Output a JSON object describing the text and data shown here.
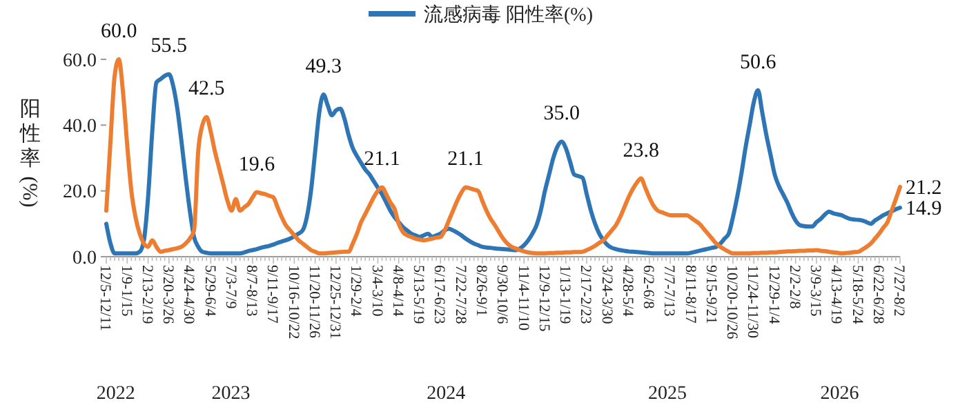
{
  "chart_data": {
    "type": "line",
    "ylabel": "阳性率(%)",
    "categories": [
      "12/5-12/11",
      null,
      null,
      null,
      null,
      "1/9-1/15",
      null,
      null,
      null,
      null,
      "2/13-2/19",
      null,
      null,
      null,
      null,
      "3/20-3/26",
      null,
      null,
      null,
      null,
      "4/24-4/30",
      null,
      null,
      null,
      null,
      "5/29-6/4",
      null,
      null,
      null,
      null,
      "7/3-7/9",
      null,
      null,
      null,
      null,
      "8/7-8/13",
      null,
      null,
      null,
      null,
      "9/11-9/17",
      null,
      null,
      null,
      null,
      "10/16-10/22",
      null,
      null,
      null,
      null,
      "11/20-11/26",
      null,
      null,
      null,
      null,
      "12/25-12/31",
      null,
      null,
      null,
      null,
      "1/29-2/4",
      null,
      null,
      null,
      null,
      "3/4-3/10",
      null,
      null,
      null,
      null,
      "4/8-4/14",
      null,
      null,
      null,
      null,
      "5/13-5/19",
      null,
      null,
      null,
      null,
      "6/17-6/23",
      null,
      null,
      null,
      null,
      "7/22-7/28",
      null,
      null,
      null,
      null,
      "8/26-9/1",
      null,
      null,
      null,
      null,
      "9/30-10/6",
      null,
      null,
      null,
      null,
      "11/4-11/10",
      null,
      null,
      null,
      null,
      "12/9-12/15",
      null,
      null,
      null,
      null,
      "1/13-1/19",
      null,
      null,
      null,
      null,
      "2/17-2/23",
      null,
      null,
      null,
      null,
      "3/24-3/30",
      null,
      null,
      null,
      null,
      "4/28-5/4",
      null,
      null,
      null,
      null,
      "6/2-6/8",
      null,
      null,
      null,
      null,
      "7/7-7/13",
      null,
      null,
      null,
      null,
      "8/11-8/17",
      null,
      null,
      null,
      null,
      "9/15-9/21",
      null,
      null,
      null,
      null,
      "10/20-10/26",
      null,
      null,
      null,
      null,
      "11/24-11/30",
      null,
      null,
      null,
      null,
      "12/29-1/4",
      null,
      null,
      null,
      null,
      "2/2-2/8",
      null,
      null,
      null,
      null,
      "3/9-3/15",
      null,
      null,
      null,
      null,
      "4/13-4/19",
      null,
      null,
      null,
      null,
      "5/18-5/24",
      null,
      null,
      null,
      null,
      "6/22-6/28",
      null,
      null,
      null,
      null,
      "7/27-8/2"
    ],
    "ylim": [
      0,
      60
    ],
    "yticks": [
      {
        "value": 0,
        "label": "0.0"
      },
      {
        "value": 20,
        "label": "20.0"
      },
      {
        "value": 40,
        "label": "40.0"
      },
      {
        "value": 60,
        "label": "60.0"
      }
    ],
    "legend": "top",
    "series": [
      {
        "name": "流感病毒 阳性率(%)",
        "color": "#2e75b6",
        "values": [
          10,
          4,
          1,
          1,
          1,
          1,
          1,
          1,
          1.5,
          5,
          18,
          38,
          53,
          54,
          55,
          55.5,
          52,
          45,
          35,
          24,
          14,
          6,
          3,
          1.5,
          1.2,
          1,
          1,
          1,
          1,
          1,
          1,
          1,
          1,
          1.3,
          1.7,
          2,
          2.3,
          2.7,
          3,
          3.3,
          3.7,
          4.2,
          4.6,
          5,
          5.5,
          6.2,
          7,
          8,
          12,
          20,
          32,
          44,
          49.3,
          46,
          43,
          44.5,
          45,
          42,
          37,
          33,
          30.6,
          28.5,
          26.5,
          25,
          23,
          21,
          19,
          16.5,
          14,
          12,
          10.5,
          9,
          8,
          7,
          6.5,
          6,
          6.5,
          7,
          6,
          6.5,
          7,
          8,
          8.5,
          8,
          7.3,
          6.5,
          5.5,
          4.7,
          4,
          3.5,
          3,
          2.8,
          2.7,
          2.5,
          2.4,
          2.3,
          2.2,
          2.1,
          2,
          2.5,
          3.5,
          5,
          7,
          9.6,
          14,
          20,
          25,
          30,
          33.5,
          35.0,
          33,
          29,
          25,
          24.5,
          24,
          19,
          14,
          10,
          7,
          5,
          3.5,
          2.7,
          2.3,
          2,
          1.8,
          1.6,
          1.5,
          1.4,
          1.3,
          1.2,
          1.1,
          1,
          1,
          1,
          1,
          1,
          1,
          1,
          1,
          1,
          1.2,
          1.5,
          1.8,
          2.1,
          2.4,
          2.7,
          3,
          4,
          5.5,
          7,
          12,
          18,
          25,
          33,
          40,
          47,
          50.6,
          44,
          37,
          31,
          25,
          21.5,
          19,
          16.5,
          13.5,
          11,
          9.6,
          9.3,
          9.2,
          9.2,
          10.5,
          11.5,
          12.8,
          13.7,
          13.2,
          12.9,
          12.6,
          12,
          11.5,
          11.3,
          11.2,
          11,
          10.5,
          10,
          11,
          11.8,
          12.6,
          13.2,
          13.8,
          14.4,
          14.9
        ],
        "value_labels": [
          null,
          null,
          null,
          null,
          null,
          null,
          null,
          null,
          null,
          null,
          null,
          null,
          null,
          null,
          null,
          "55.5",
          null,
          null,
          null,
          null,
          null,
          null,
          null,
          null,
          null,
          null,
          null,
          null,
          null,
          null,
          null,
          null,
          null,
          null,
          null,
          null,
          null,
          null,
          null,
          null,
          null,
          null,
          null,
          null,
          null,
          null,
          null,
          null,
          null,
          null,
          null,
          null,
          "49.3",
          null,
          null,
          null,
          null,
          null,
          null,
          null,
          null,
          null,
          null,
          null,
          null,
          null,
          null,
          null,
          null,
          null,
          null,
          null,
          null,
          null,
          null,
          null,
          null,
          null,
          null,
          null,
          null,
          null,
          null,
          null,
          null,
          null,
          null,
          null,
          null,
          null,
          null,
          null,
          null,
          null,
          null,
          null,
          null,
          null,
          null,
          null,
          null,
          null,
          null,
          null,
          null,
          null,
          null,
          null,
          null,
          "35.0",
          null,
          null,
          null,
          null,
          null,
          null,
          null,
          null,
          null,
          null,
          null,
          null,
          null,
          null,
          null,
          null,
          null,
          null,
          null,
          null,
          null,
          null,
          null,
          null,
          null,
          null,
          null,
          null,
          null,
          null,
          null,
          null,
          null,
          null,
          null,
          null,
          null,
          null,
          null,
          null,
          null,
          null,
          null,
          null,
          null,
          null,
          "50.6",
          null,
          null,
          null,
          null,
          null,
          null,
          null,
          null,
          null,
          null,
          null,
          null,
          null,
          null,
          null,
          null,
          null,
          null,
          null,
          null,
          null,
          null,
          null,
          null,
          null,
          null,
          null,
          null,
          null,
          null,
          null,
          null,
          null,
          "14.9"
        ]
      },
      {
        "color": "#ed7d31",
        "values": [
          14,
          35,
          55,
          60.0,
          50,
          34,
          20,
          12,
          7,
          4,
          3,
          5,
          3,
          1.5,
          1.8,
          2,
          2.3,
          2.6,
          3,
          4,
          5.5,
          8,
          32,
          40,
          42.5,
          38,
          32,
          27,
          22,
          17,
          14,
          17.5,
          14,
          15,
          16,
          18,
          19.6,
          19.3,
          19,
          18.5,
          18,
          15,
          12,
          9.5,
          8,
          6.5,
          5,
          4,
          3,
          2,
          1.5,
          1,
          1,
          1.1,
          1.2,
          1.3,
          1.4,
          1.5,
          1.5,
          4,
          7,
          10.5,
          13,
          15.5,
          18,
          20,
          21.1,
          19,
          16.5,
          14.5,
          10,
          7.5,
          6.5,
          6,
          5.5,
          5.2,
          5,
          5.2,
          5.5,
          5.8,
          6,
          8,
          11,
          14,
          17,
          19.5,
          21.1,
          20.8,
          20.4,
          20,
          17,
          14,
          11.5,
          9.6,
          7.5,
          5.5,
          4,
          3,
          2.5,
          2,
          1.6,
          1.3,
          1.1,
          1,
          1,
          1,
          1.1,
          1.1,
          1.2,
          1.2,
          1.3,
          1.3,
          1.4,
          1.4,
          1.5,
          2,
          2.6,
          3.3,
          4.2,
          5,
          6.5,
          8,
          9.6,
          12,
          15,
          18,
          20.5,
          22.5,
          23.8,
          21,
          18,
          15.5,
          14,
          13.5,
          13,
          12.6,
          12.6,
          12.6,
          12.6,
          12.6,
          11.8,
          10.9,
          10,
          8.5,
          7,
          5.5,
          4,
          3,
          2.2,
          1.5,
          1,
          1,
          1,
          1,
          1,
          1.1,
          1.1,
          1.2,
          1.2,
          1.3,
          1.3,
          1.4,
          1.5,
          1.6,
          1.6,
          1.7,
          1.8,
          1.8,
          1.9,
          1.9,
          2,
          1.8,
          1.7,
          1.5,
          1.3,
          1.2,
          1,
          1.1,
          1.2,
          1.4,
          1.5,
          2.2,
          3,
          4,
          5.5,
          7,
          8.8,
          10.5,
          14,
          17.5,
          21.2
        ],
        "value_labels": [
          null,
          null,
          null,
          "60.0",
          null,
          null,
          null,
          null,
          null,
          null,
          null,
          null,
          null,
          null,
          null,
          null,
          null,
          null,
          null,
          null,
          null,
          null,
          null,
          null,
          "42.5",
          null,
          null,
          null,
          null,
          null,
          null,
          null,
          null,
          null,
          null,
          null,
          "19.6",
          null,
          null,
          null,
          null,
          null,
          null,
          null,
          null,
          null,
          null,
          null,
          null,
          null,
          null,
          null,
          null,
          null,
          null,
          null,
          null,
          null,
          null,
          null,
          null,
          null,
          null,
          null,
          null,
          null,
          "21.1",
          null,
          null,
          null,
          null,
          null,
          null,
          null,
          null,
          null,
          null,
          null,
          null,
          null,
          null,
          null,
          null,
          null,
          null,
          null,
          "21.1",
          null,
          null,
          null,
          null,
          null,
          null,
          null,
          null,
          null,
          null,
          null,
          null,
          null,
          null,
          null,
          null,
          null,
          null,
          null,
          null,
          null,
          null,
          null,
          null,
          null,
          null,
          null,
          null,
          null,
          null,
          null,
          null,
          null,
          null,
          null,
          null,
          null,
          null,
          null,
          null,
          null,
          "23.8",
          null,
          null,
          null,
          null,
          null,
          null,
          null,
          null,
          null,
          null,
          null,
          null,
          null,
          null,
          null,
          null,
          null,
          null,
          null,
          null,
          null,
          null,
          null,
          null,
          null,
          null,
          null,
          null,
          null,
          null,
          null,
          null,
          null,
          null,
          null,
          null,
          null,
          null,
          null,
          null,
          null,
          null,
          null,
          null,
          null,
          null,
          null,
          null,
          null,
          null,
          null,
          null,
          null,
          null,
          null,
          null,
          null,
          null,
          null,
          null,
          null,
          "21.2"
        ]
      }
    ],
    "annotations": [
      "2022",
      "2023",
      "2024",
      "2025",
      "2026"
    ]
  }
}
